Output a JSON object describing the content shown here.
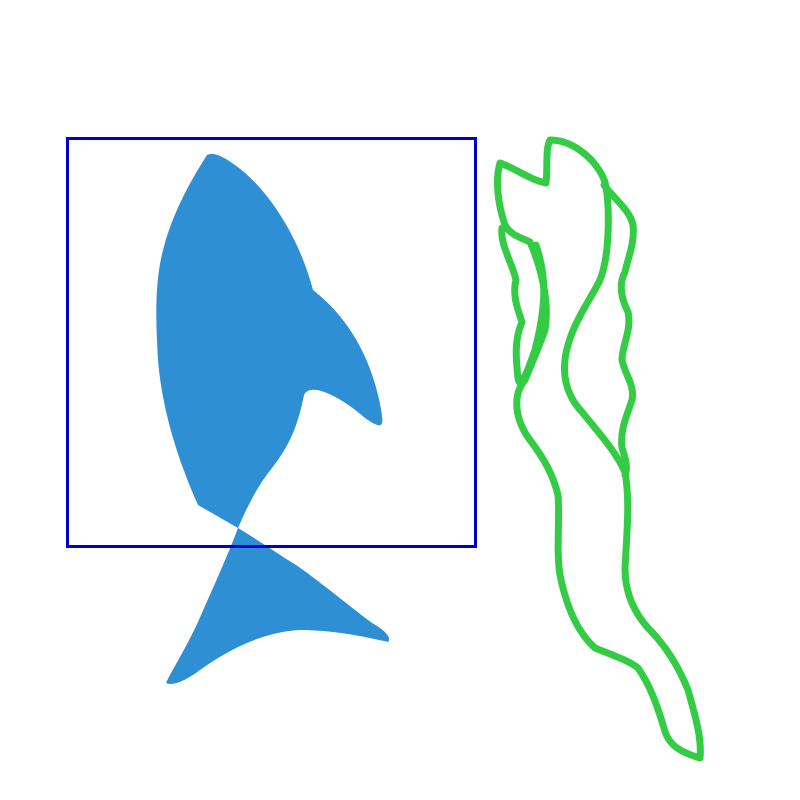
{
  "colors": {
    "background": "#ffffff",
    "fish_fill": "#2f8fd5",
    "box_stroke": "#0000cc",
    "seaweed_stroke": "#33cc44"
  },
  "shapes": {
    "fish": "blue-fish-silhouette",
    "box": "selection-rectangle",
    "seaweed": "green-seaweed-outline"
  }
}
